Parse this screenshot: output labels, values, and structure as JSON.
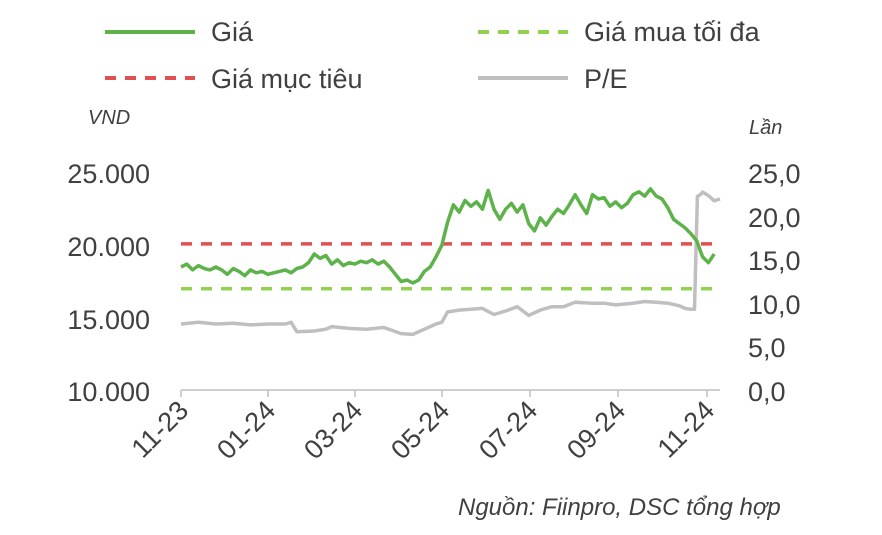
{
  "chart_data": {
    "type": "line",
    "legend": [
      {
        "name": "Giá",
        "color": "#5db34a",
        "style": "solid"
      },
      {
        "name": "Giá mua tối đa",
        "color": "#92d050",
        "style": "dashed"
      },
      {
        "name": "Giá mục tiêu",
        "color": "#e05050",
        "style": "dashed"
      },
      {
        "name": "P/E",
        "color": "#bfbfbf",
        "style": "solid"
      }
    ],
    "left_axis": {
      "unit": "VND",
      "ticks": [
        "25.000",
        "20.000",
        "15.000",
        "10.000"
      ],
      "ylim": [
        10000,
        25000
      ]
    },
    "right_axis": {
      "unit": "Lần",
      "ticks": [
        "25,0",
        "20,0",
        "15,0",
        "10,0",
        "5,0",
        "0,0"
      ],
      "ylim": [
        0,
        25
      ]
    },
    "x_ticks": [
      "11-23",
      "01-24",
      "03-24",
      "05-24",
      "07-24",
      "09-24",
      "11-24"
    ],
    "reference_lines": {
      "target_price": 20100,
      "max_buy_price": 17000
    },
    "series": [
      {
        "name": "Giá",
        "axis": "left",
        "points": [
          [
            0,
            18500
          ],
          [
            1,
            18700
          ],
          [
            2,
            18300
          ],
          [
            3,
            18600
          ],
          [
            4,
            18400
          ],
          [
            5,
            18300
          ],
          [
            6,
            18500
          ],
          [
            7,
            18300
          ],
          [
            8,
            18000
          ],
          [
            9,
            18400
          ],
          [
            10,
            18200
          ],
          [
            11,
            17900
          ],
          [
            12,
            18300
          ],
          [
            13,
            18100
          ],
          [
            14,
            18200
          ],
          [
            15,
            18000
          ],
          [
            16,
            18100
          ],
          [
            17,
            18200
          ],
          [
            18,
            18300
          ],
          [
            19,
            18100
          ],
          [
            20,
            18400
          ],
          [
            21,
            18500
          ],
          [
            22,
            18800
          ],
          [
            23,
            19400
          ],
          [
            24,
            19100
          ],
          [
            25,
            19300
          ],
          [
            26,
            18700
          ],
          [
            27,
            19000
          ],
          [
            28,
            18600
          ],
          [
            29,
            18800
          ],
          [
            30,
            18700
          ],
          [
            31,
            18900
          ],
          [
            32,
            18800
          ],
          [
            33,
            19000
          ],
          [
            34,
            18700
          ],
          [
            35,
            18900
          ],
          [
            36,
            18500
          ],
          [
            37,
            18000
          ],
          [
            38,
            17500
          ],
          [
            39,
            17600
          ],
          [
            40,
            17400
          ],
          [
            41,
            17600
          ],
          [
            42,
            18200
          ],
          [
            43,
            18500
          ],
          [
            44,
            19200
          ],
          [
            45,
            20000
          ],
          [
            46,
            21600
          ],
          [
            47,
            22800
          ],
          [
            48,
            22300
          ],
          [
            49,
            23100
          ],
          [
            50,
            22700
          ],
          [
            51,
            23000
          ],
          [
            52,
            22500
          ],
          [
            53,
            23800
          ],
          [
            54,
            22500
          ],
          [
            55,
            21800
          ],
          [
            56,
            22500
          ],
          [
            57,
            22900
          ],
          [
            58,
            22300
          ],
          [
            59,
            22800
          ],
          [
            60,
            21500
          ],
          [
            61,
            21000
          ],
          [
            62,
            21900
          ],
          [
            63,
            21400
          ],
          [
            64,
            22000
          ],
          [
            65,
            22500
          ],
          [
            66,
            22200
          ],
          [
            67,
            22800
          ],
          [
            68,
            23500
          ],
          [
            69,
            22800
          ],
          [
            70,
            22200
          ],
          [
            71,
            23500
          ],
          [
            72,
            23200
          ],
          [
            73,
            23300
          ],
          [
            74,
            22700
          ],
          [
            75,
            23000
          ],
          [
            76,
            22600
          ],
          [
            77,
            22900
          ],
          [
            78,
            23500
          ],
          [
            79,
            23700
          ],
          [
            80,
            23400
          ],
          [
            81,
            23900
          ],
          [
            82,
            23400
          ],
          [
            83,
            23200
          ],
          [
            84,
            22600
          ],
          [
            85,
            21800
          ],
          [
            86,
            21500
          ],
          [
            87,
            21200
          ],
          [
            88,
            20800
          ],
          [
            89,
            20300
          ],
          [
            90,
            19200
          ],
          [
            91,
            18800
          ],
          [
            92,
            19400
          ]
        ]
      },
      {
        "name": "P/E",
        "axis": "right",
        "points": [
          [
            0,
            7.6
          ],
          [
            3,
            7.8
          ],
          [
            6,
            7.6
          ],
          [
            9,
            7.7
          ],
          [
            12,
            7.5
          ],
          [
            15,
            7.6
          ],
          [
            18,
            7.6
          ],
          [
            19,
            7.8
          ],
          [
            20,
            6.7
          ],
          [
            23,
            6.8
          ],
          [
            25,
            7.0
          ],
          [
            26,
            7.3
          ],
          [
            29,
            7.1
          ],
          [
            32,
            7.0
          ],
          [
            35,
            7.2
          ],
          [
            38,
            6.5
          ],
          [
            40,
            6.4
          ],
          [
            42,
            7.0
          ],
          [
            44,
            7.6
          ],
          [
            45,
            7.8
          ],
          [
            46,
            9.0
          ],
          [
            48,
            9.2
          ],
          [
            50,
            9.3
          ],
          [
            52,
            9.4
          ],
          [
            54,
            8.7
          ],
          [
            56,
            9.1
          ],
          [
            58,
            9.6
          ],
          [
            60,
            8.6
          ],
          [
            62,
            9.2
          ],
          [
            64,
            9.6
          ],
          [
            66,
            9.6
          ],
          [
            68,
            10.1
          ],
          [
            71,
            10.0
          ],
          [
            73,
            10.0
          ],
          [
            75,
            9.8
          ],
          [
            78,
            10.0
          ],
          [
            80,
            10.2
          ],
          [
            82,
            10.1
          ],
          [
            84,
            10.0
          ],
          [
            86,
            9.7
          ],
          [
            87,
            9.4
          ],
          [
            88,
            9.3
          ],
          [
            88.6,
            9.3
          ],
          [
            89.1,
            22.3
          ],
          [
            89.6,
            22.5
          ],
          [
            90,
            22.8
          ],
          [
            91,
            22.4
          ],
          [
            92,
            21.8
          ],
          [
            93,
            22.0
          ]
        ]
      }
    ],
    "source": "Nguồn: Fiinpro, DSC tổng hợp"
  }
}
